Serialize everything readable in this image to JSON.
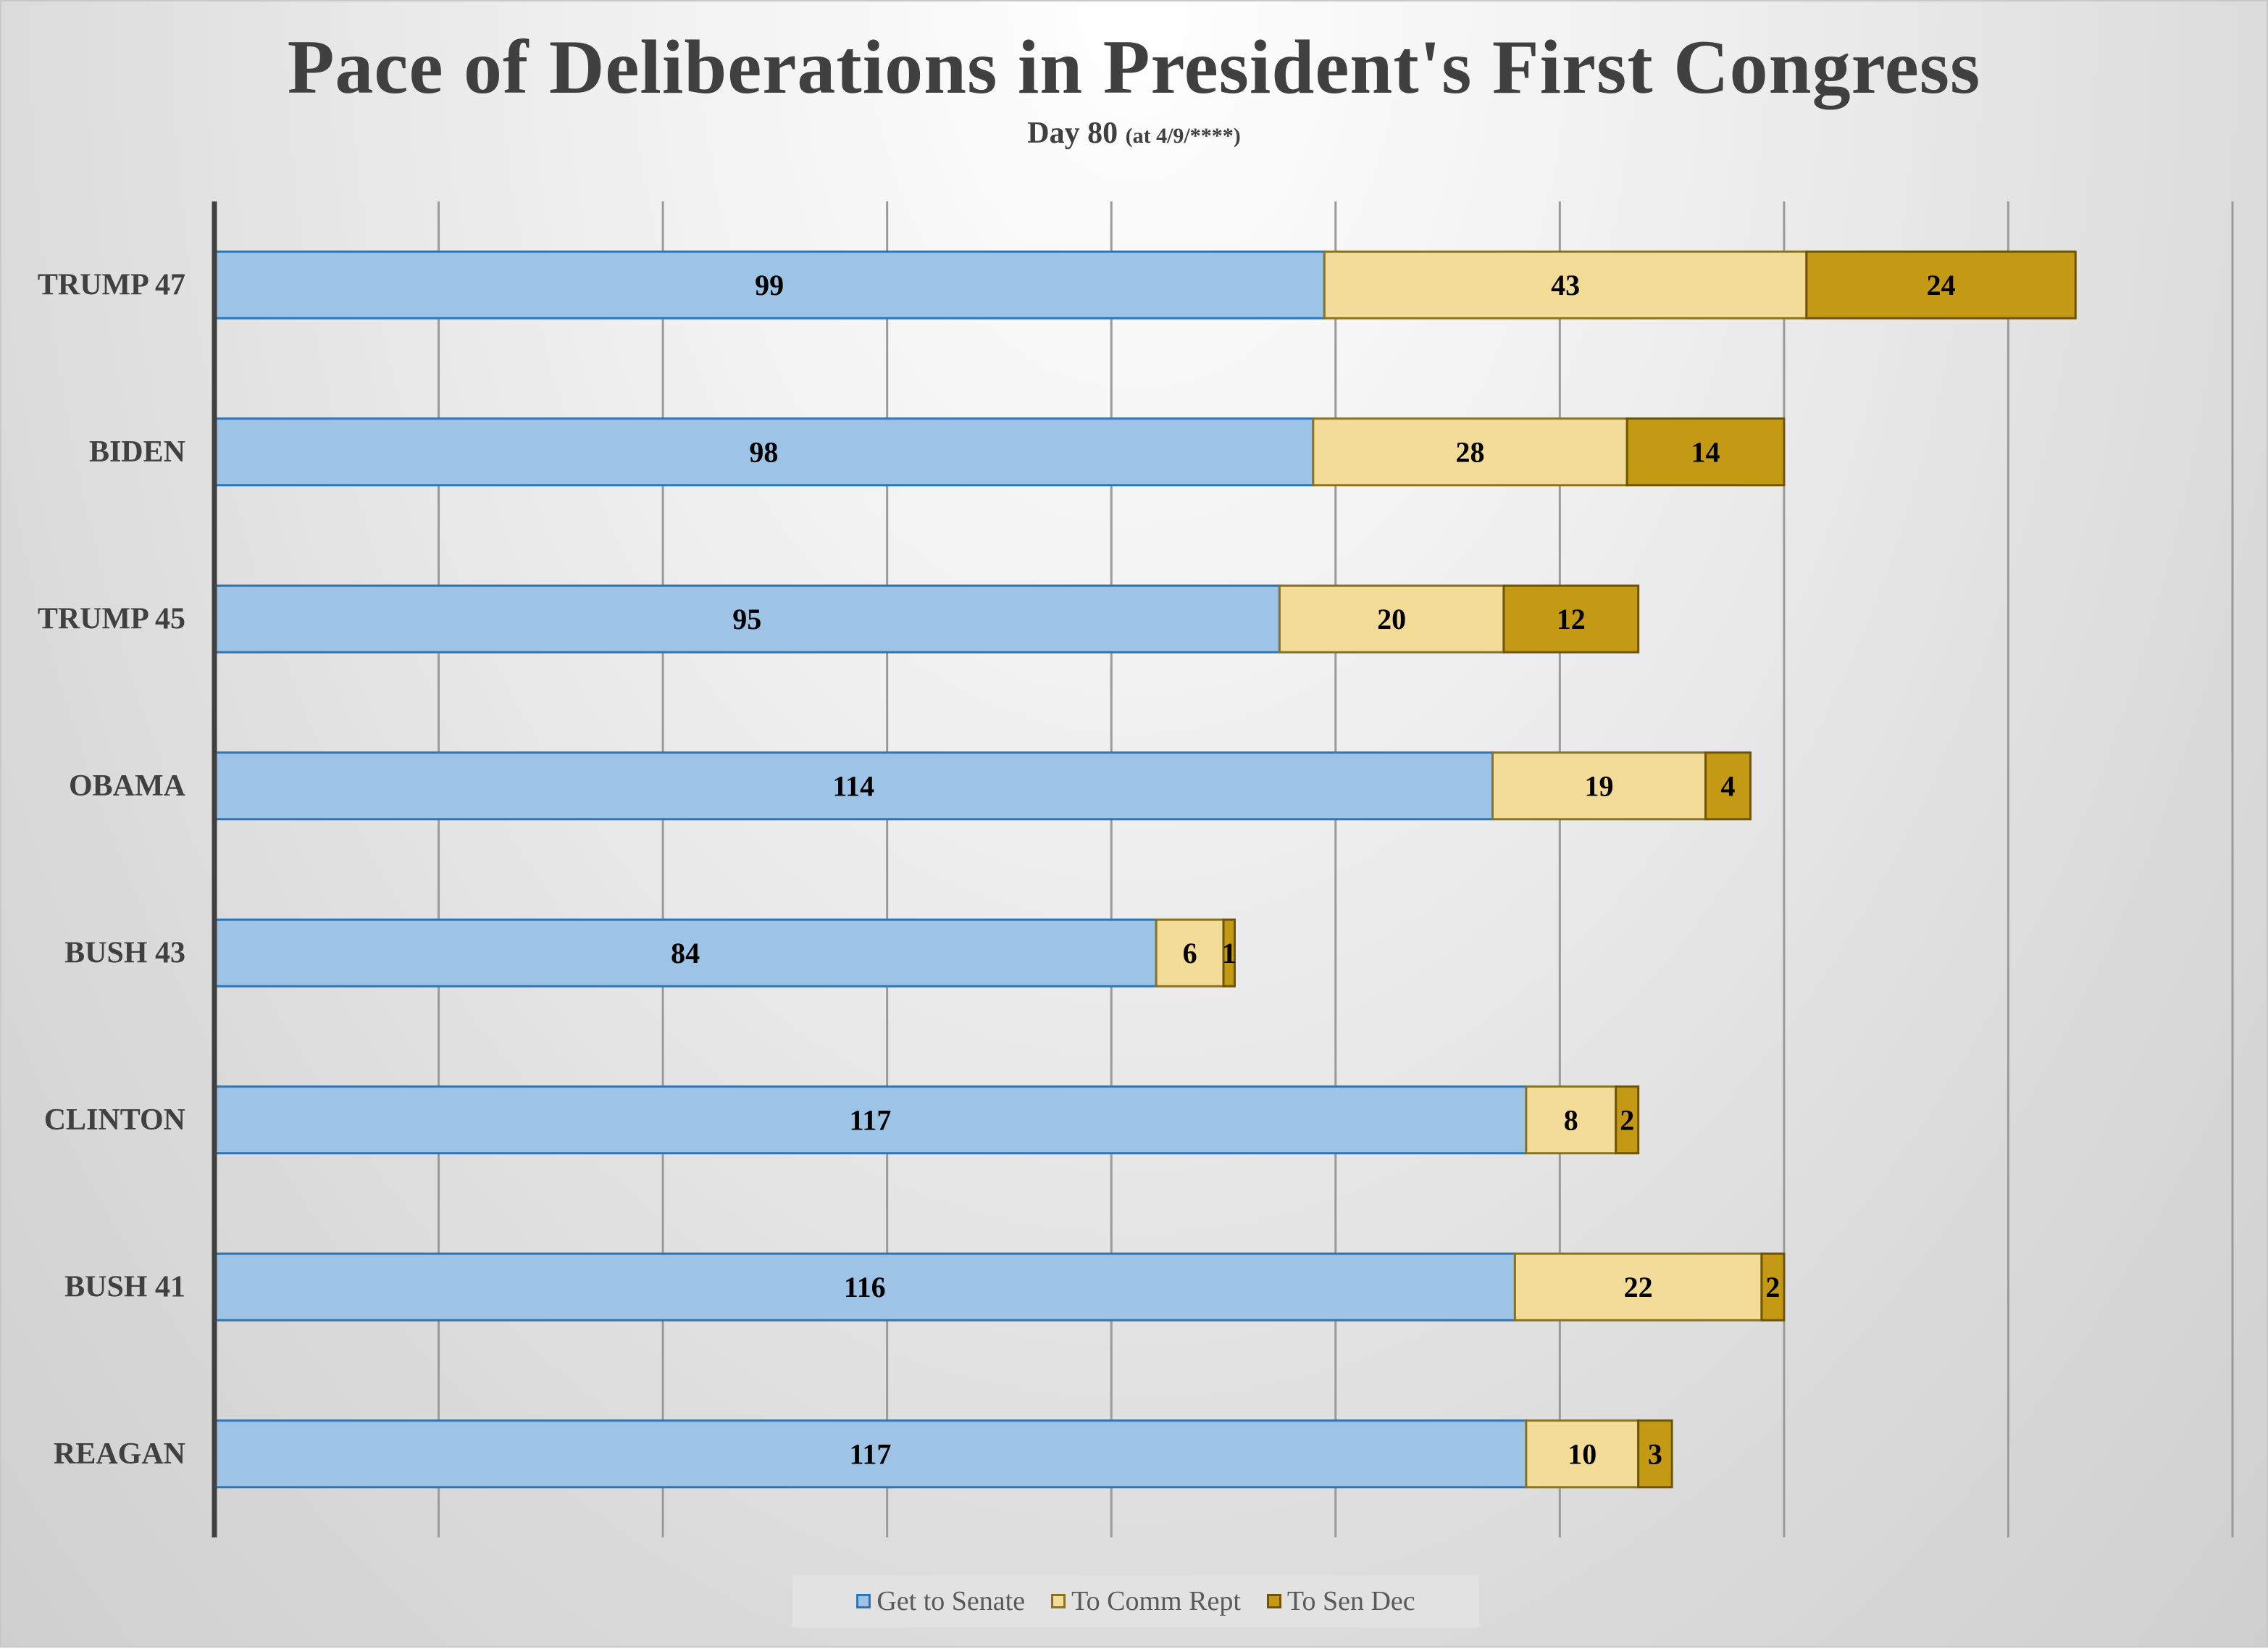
{
  "chart_data": {
    "type": "bar",
    "orientation": "horizontal",
    "stacked": true,
    "title": "Pace of  Deliberations in President's First Congress",
    "subtitle": "Day 80",
    "subtitle_note": "(at 4/9/****)",
    "categories": [
      "TRUMP 47",
      "BIDEN",
      "TRUMP 45",
      "OBAMA",
      "BUSH 43",
      "CLINTON",
      "BUSH 41",
      "REAGAN"
    ],
    "series": [
      {
        "name": "Get to Senate",
        "values": [
          99,
          98,
          95,
          114,
          84,
          117,
          116,
          117
        ],
        "color": "#9dc3e6",
        "edge": "#2e75b6"
      },
      {
        "name": "To Comm Rept",
        "values": [
          43,
          28,
          20,
          19,
          6,
          8,
          22,
          10
        ],
        "color": "#f2dc98",
        "edge": "#8a7320"
      },
      {
        "name": "To Sen Dec",
        "values": [
          24,
          14,
          12,
          4,
          1,
          2,
          2,
          3
        ],
        "color": "#c49a15",
        "edge": "#6e5506"
      }
    ],
    "xlim": [
      0,
      180
    ],
    "x_gridline_step": 20,
    "x_tick_labels_shown": false,
    "grid": true,
    "legend_position": "bottom"
  }
}
